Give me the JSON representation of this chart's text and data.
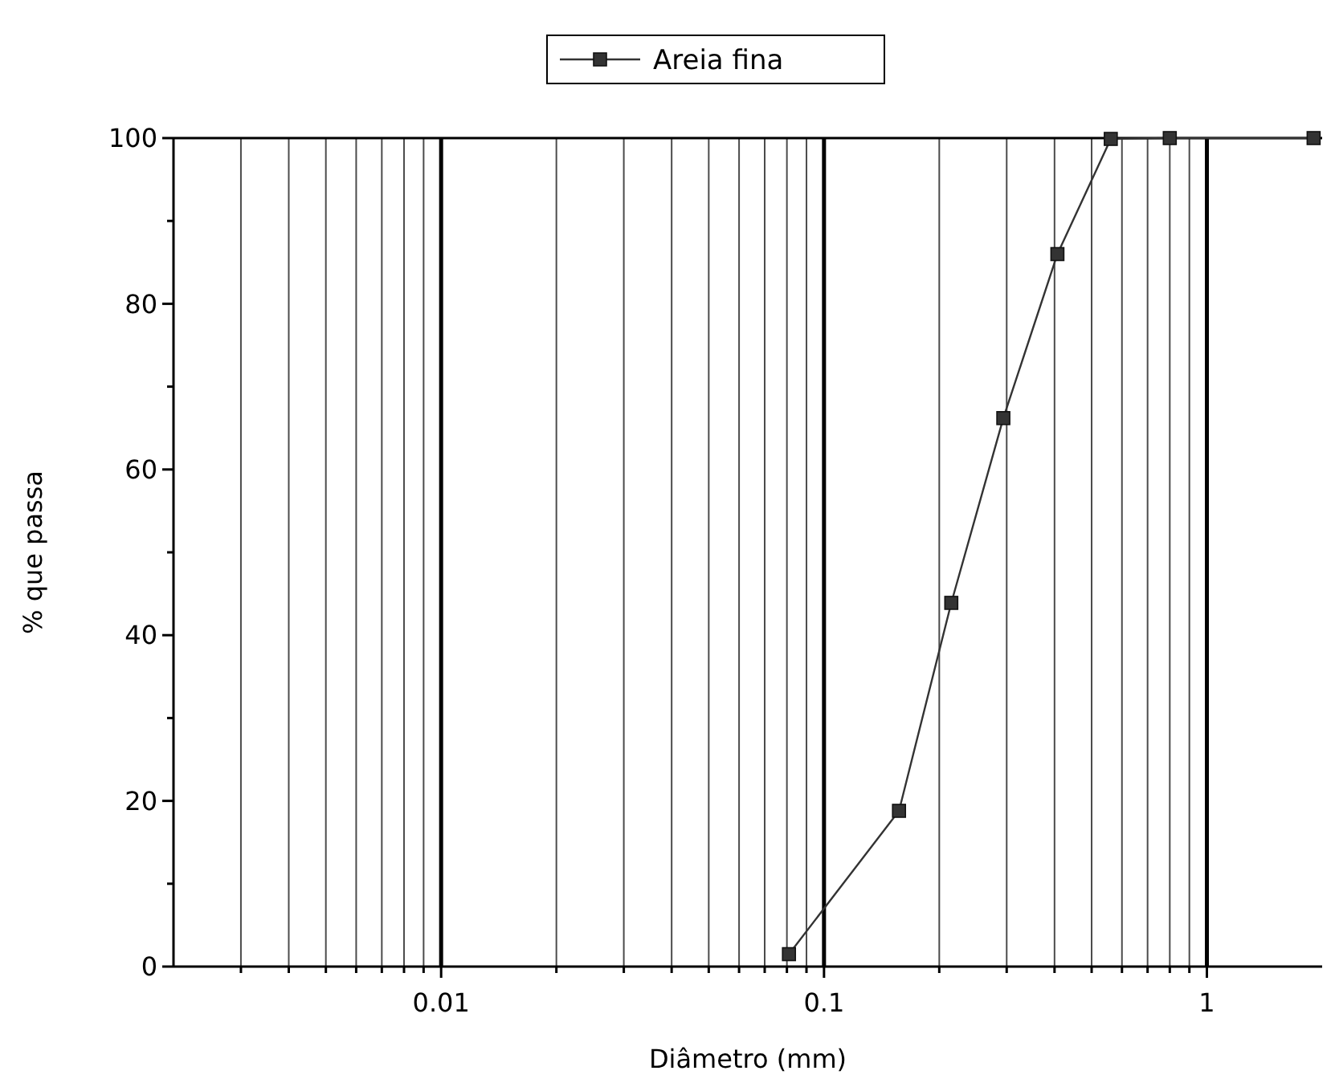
{
  "chart_data": {
    "type": "line",
    "xlabel": "Diâmetro (mm)",
    "ylabel": "% que passa",
    "log": "x",
    "grid": "x",
    "legend": "top",
    "marker": "square",
    "line_style": "solid",
    "xlim": [
      0.002,
      2
    ],
    "ylim": [
      0,
      100
    ],
    "xticks": [
      {
        "value": 0.003,
        "label": null
      },
      {
        "value": 0.004,
        "label": null
      },
      {
        "value": 0.005,
        "label": null
      },
      {
        "value": 0.006,
        "label": null
      },
      {
        "value": 0.007,
        "label": null
      },
      {
        "value": 0.008,
        "label": null
      },
      {
        "value": 0.009,
        "label": null
      },
      0.01,
      {
        "value": 0.02,
        "label": null
      },
      {
        "value": 0.03,
        "label": null
      },
      {
        "value": 0.04,
        "label": null
      },
      {
        "value": 0.05,
        "label": null
      },
      {
        "value": 0.06,
        "label": null
      },
      {
        "value": 0.07,
        "label": null
      },
      {
        "value": 0.08,
        "label": null
      },
      {
        "value": 0.09,
        "label": null
      },
      0.1,
      {
        "value": 0.2,
        "label": null
      },
      {
        "value": 0.3,
        "label": null
      },
      {
        "value": 0.4,
        "label": null
      },
      {
        "value": 0.5,
        "label": null
      },
      {
        "value": 0.6,
        "label": null
      },
      {
        "value": 0.7,
        "label": null
      },
      {
        "value": 0.8,
        "label": null
      },
      {
        "value": 0.9,
        "label": null
      },
      1
    ],
    "yticks": [
      0,
      {
        "value": 10,
        "label": null
      },
      20,
      {
        "value": 30,
        "label": null
      },
      40,
      {
        "value": 50,
        "label": null
      },
      60,
      {
        "value": 70,
        "label": null
      },
      80,
      {
        "value": 90,
        "label": null
      },
      100
    ],
    "x": [
      0.081,
      0.157,
      0.215,
      0.294,
      0.407,
      0.561,
      0.8,
      1.9
    ],
    "series": [
      {
        "name": "Areia fina",
        "color": "#333333",
        "values": [
          1.5,
          18.8,
          43.9,
          66.2,
          86,
          99.9,
          100,
          100
        ]
      }
    ]
  }
}
